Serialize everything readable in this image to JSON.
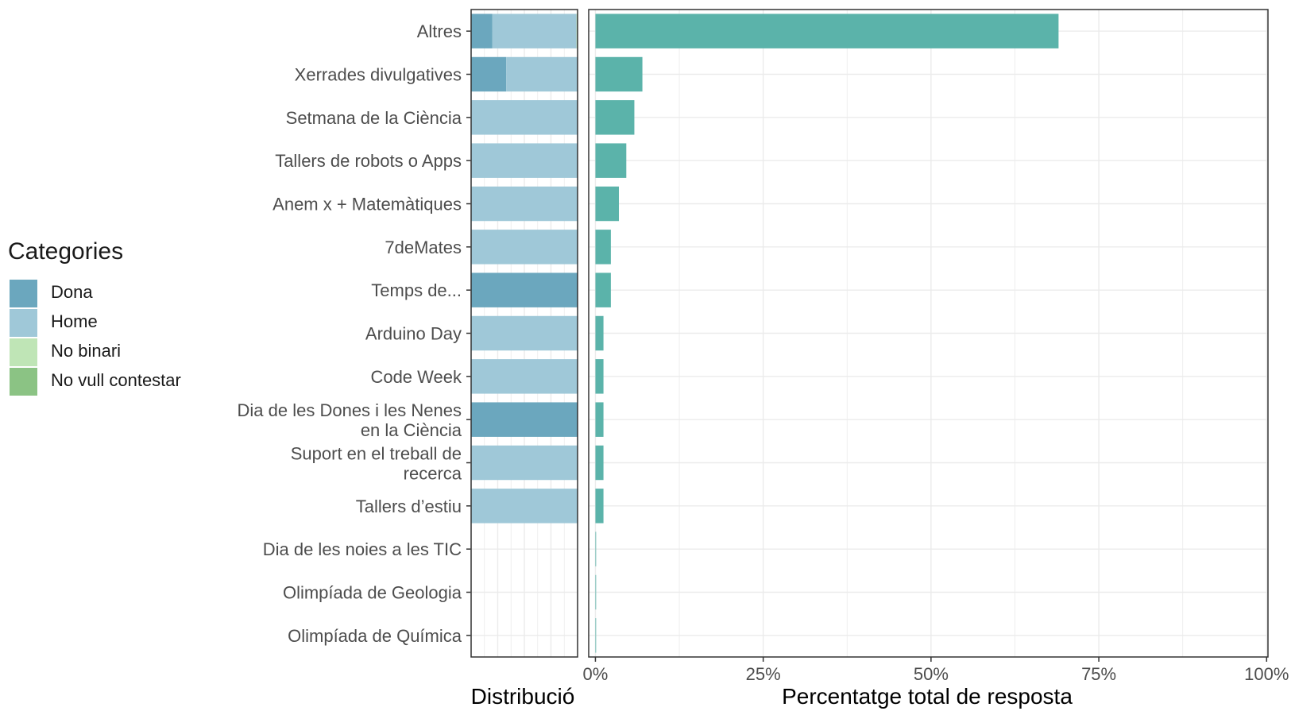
{
  "legend": {
    "title": "Categories",
    "items": [
      {
        "label": "Dona",
        "color": "#6ba7be"
      },
      {
        "label": "Home",
        "color": "#9fc8d8"
      },
      {
        "label": "No binari",
        "color": "#bfe5b6"
      },
      {
        "label": "No vull contestar",
        "color": "#8bc384"
      }
    ]
  },
  "chart_data": {
    "type": "bar",
    "categories": [
      "Altres",
      "Xerrades divulgatives",
      "Setmana de la Ciència",
      "Tallers de robots o Apps",
      "Anem x + Matemàtiques",
      "7deMates",
      "Temps de...",
      "Arduino Day",
      "Code Week",
      "Dia de les Dones i les Nenes en la Ciència",
      "Suport en el treball de recerca",
      "Tallers d’estiu",
      "Dia de les noies a les TIC",
      "Olimpíada de Geologia",
      "Olimpíada de Química"
    ],
    "category_lines": [
      [
        "Altres"
      ],
      [
        "Xerrades divulgatives"
      ],
      [
        "Setmana de la Ciència"
      ],
      [
        "Tallers de robots o Apps"
      ],
      [
        "Anem x + Matemàtiques"
      ],
      [
        "7deMates"
      ],
      [
        "Temps de..."
      ],
      [
        "Arduino Day"
      ],
      [
        "Code Week"
      ],
      [
        "Dia de les Dones i les Nenes",
        "en la Ciència"
      ],
      [
        "Suport en el treball de",
        "recerca"
      ],
      [
        "Tallers d’estiu"
      ],
      [
        "Dia de les noies a les TIC"
      ],
      [
        "Olimpíada de Geologia"
      ],
      [
        "Olimpíada de Química"
      ]
    ],
    "panels": [
      {
        "xlabel": "Distribució",
        "type": "stacked-bar-100",
        "series": [
          {
            "name": "Dona",
            "color": "#6ba7be",
            "values": [
              0.2,
              0.33,
              0,
              0,
              0,
              0,
              1,
              0,
              0,
              1,
              0,
              0,
              0,
              0,
              0
            ]
          },
          {
            "name": "Home",
            "color": "#9fc8d8",
            "values": [
              0.79,
              0.67,
              1,
              1,
              1,
              1,
              0,
              1,
              1,
              0,
              1,
              1,
              0,
              0,
              0
            ]
          },
          {
            "name": "No binari",
            "color": "#bfe5b6",
            "values": [
              0.01,
              0,
              0,
              0,
              0,
              0,
              0,
              0,
              0,
              0,
              0,
              0,
              0,
              0,
              0
            ]
          },
          {
            "name": "No vull contestar",
            "color": "#8bc384",
            "values": [
              0,
              0,
              0,
              0,
              0,
              0,
              0,
              0,
              0,
              0,
              0,
              0,
              0,
              0,
              0
            ]
          }
        ]
      },
      {
        "xlabel": "Percentatge total de resposta",
        "type": "bar",
        "color": "#5bb3aa",
        "values": [
          69,
          7,
          5.8,
          4.6,
          3.5,
          2.3,
          2.3,
          1.2,
          1.2,
          1.2,
          1.2,
          1.2,
          0.1,
          0.1,
          0.1
        ],
        "unit": "%",
        "xlim": [
          0,
          100
        ],
        "xticks": [
          0,
          25,
          50,
          75,
          100
        ],
        "xtick_labels": [
          "0%",
          "25%",
          "50%",
          "75%",
          "100%"
        ]
      }
    ],
    "grid": true,
    "legend_position": "left"
  }
}
